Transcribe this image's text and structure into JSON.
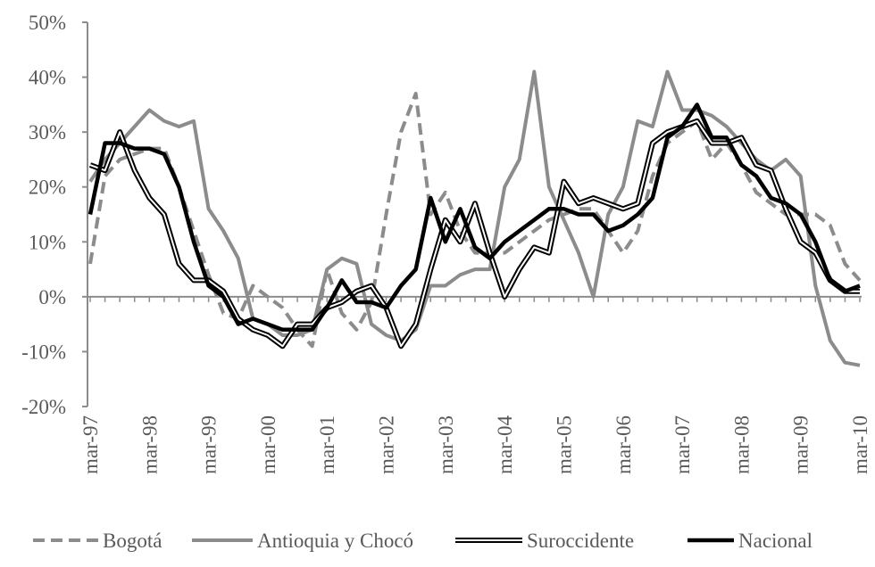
{
  "chart_data": {
    "type": "line",
    "categories": [
      "mar-97",
      null,
      null,
      null,
      "mar-98",
      null,
      null,
      null,
      "mar-99",
      null,
      null,
      null,
      "mar-00",
      null,
      null,
      null,
      "mar-01",
      null,
      null,
      null,
      "mar-02",
      null,
      null,
      null,
      "mar-03",
      null,
      null,
      null,
      "mar-04",
      null,
      null,
      null,
      "mar-05",
      null,
      null,
      null,
      "mar-06",
      null,
      null,
      null,
      "mar-07",
      null,
      null,
      null,
      "mar-08",
      null,
      null,
      null,
      "mar-09",
      null,
      null,
      null,
      "mar-10"
    ],
    "series": [
      {
        "name": "Bogotá",
        "color": "#8c8c8c",
        "style": "dashed",
        "values": [
          6,
          22,
          25,
          26,
          27,
          27,
          20,
          12,
          4,
          -3,
          -4,
          2,
          0,
          -2,
          -6,
          -9,
          5,
          -3,
          -6,
          -1,
          15,
          30,
          37,
          15,
          19,
          12,
          8,
          8,
          8,
          10,
          12,
          14,
          15,
          16,
          16,
          12,
          8,
          12,
          22,
          28,
          30,
          32,
          25,
          28,
          24,
          19,
          17,
          15,
          15,
          15,
          13,
          6,
          3
        ]
      },
      {
        "name": "Antioquia y Chocó",
        "color": "#8c8c8c",
        "style": "solid",
        "values": [
          21,
          25,
          28,
          31,
          34,
          32,
          31,
          32,
          16,
          12,
          7,
          -4,
          -5,
          -7,
          -7,
          -6,
          5,
          7,
          6,
          -5,
          -7,
          -8,
          -6,
          2,
          2,
          4,
          5,
          5,
          20,
          25,
          41,
          20,
          14,
          8,
          0,
          15,
          20,
          32,
          31,
          41,
          34,
          34,
          33,
          31,
          28,
          25,
          23,
          25,
          22,
          2,
          -8,
          -12,
          -12.5
        ]
      },
      {
        "name": "Suroccidente",
        "color": "#000000",
        "style": "double",
        "values": [
          24,
          23,
          30,
          23,
          18,
          15,
          6,
          3,
          3,
          1,
          -4,
          -6,
          -7,
          -9,
          -5,
          -5,
          -2,
          -1,
          1,
          2,
          -2,
          -9,
          -5,
          5,
          14,
          10,
          17,
          8,
          0,
          5,
          9,
          8,
          21,
          17,
          18,
          17,
          16,
          17,
          28,
          30,
          31,
          32,
          28,
          28,
          29,
          24,
          23,
          16,
          10,
          8,
          3,
          1,
          1
        ]
      },
      {
        "name": "Nacional",
        "color": "#000000",
        "style": "solid",
        "values": [
          15,
          28,
          28,
          27,
          27,
          26,
          20,
          10,
          2,
          0,
          -5,
          -4,
          -5,
          -6,
          -6,
          -6,
          -2,
          3,
          -1,
          -1,
          -2,
          2,
          5,
          18,
          10,
          16,
          9,
          7,
          10,
          12,
          14,
          16,
          16,
          15,
          15,
          12,
          13,
          15,
          18,
          29,
          31,
          35,
          29,
          29,
          24,
          22,
          18,
          17,
          15,
          10,
          3,
          1,
          2
        ]
      }
    ],
    "ylim": [
      -20,
      50
    ],
    "yticks": [
      {
        "value": -20,
        "label": "-20%"
      },
      {
        "value": -10,
        "label": "-10%"
      },
      {
        "value": 0,
        "label": "0%"
      },
      {
        "value": 10,
        "label": "10%"
      },
      {
        "value": 20,
        "label": "20%"
      },
      {
        "value": 30,
        "label": "30%"
      },
      {
        "value": 40,
        "label": "40%"
      },
      {
        "value": 50,
        "label": "50%"
      }
    ],
    "legend": "bottom"
  }
}
